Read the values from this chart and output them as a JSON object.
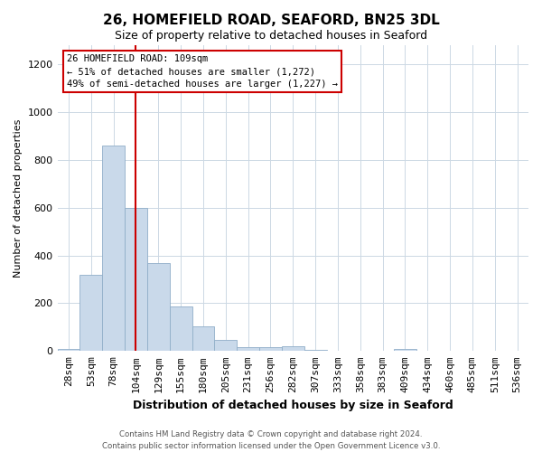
{
  "title1": "26, HOMEFIELD ROAD, SEAFORD, BN25 3DL",
  "title2": "Size of property relative to detached houses in Seaford",
  "xlabel": "Distribution of detached houses by size in Seaford",
  "ylabel": "Number of detached properties",
  "bar_labels": [
    "28sqm",
    "53sqm",
    "78sqm",
    "104sqm",
    "129sqm",
    "155sqm",
    "180sqm",
    "205sqm",
    "231sqm",
    "256sqm",
    "282sqm",
    "307sqm",
    "333sqm",
    "358sqm",
    "383sqm",
    "409sqm",
    "434sqm",
    "460sqm",
    "485sqm",
    "511sqm",
    "536sqm"
  ],
  "bar_values": [
    10,
    320,
    860,
    600,
    370,
    185,
    105,
    45,
    15,
    15,
    20,
    5,
    0,
    0,
    0,
    10,
    0,
    0,
    0,
    0,
    0
  ],
  "bar_color": "#c9d9ea",
  "bar_edge_color": "#90aec8",
  "vline_index": 3,
  "vline_color": "#cc0000",
  "ylim": [
    0,
    1280
  ],
  "yticks": [
    0,
    200,
    400,
    600,
    800,
    1000,
    1200
  ],
  "annotation_title": "26 HOMEFIELD ROAD: 109sqm",
  "annotation_line1": "← 51% of detached houses are smaller (1,272)",
  "annotation_line2": "49% of semi-detached houses are larger (1,227) →",
  "annotation_box_color": "#ffffff",
  "annotation_box_edge": "#cc0000",
  "footer1": "Contains HM Land Registry data © Crown copyright and database right 2024.",
  "footer2": "Contains public sector information licensed under the Open Government Licence v3.0.",
  "background_color": "#ffffff",
  "grid_color": "#ccd8e4",
  "title1_fontsize": 11,
  "title2_fontsize": 9,
  "xlabel_fontsize": 9,
  "ylabel_fontsize": 8
}
